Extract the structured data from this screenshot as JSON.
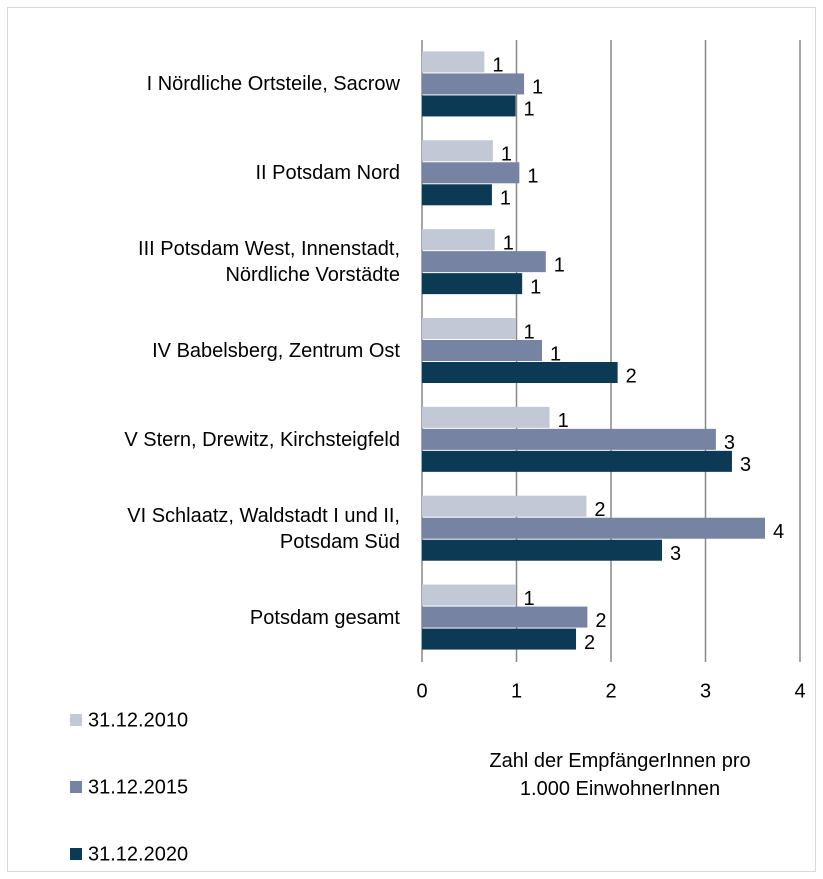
{
  "chart_data": {
    "type": "bar",
    "orientation": "horizontal",
    "categories": [
      "I Nördliche Ortsteile, Sacrow",
      "II Potsdam Nord",
      "III Potsdam West, Innenstadt,\nNördliche Vorstädte",
      "IV Babelsberg, Zentrum Ost",
      "V Stern, Drewitz, Kirchsteigfeld",
      "VI Schlaatz, Waldstadt I und II,\nPotsdam Süd",
      "Potsdam gesamt"
    ],
    "series": [
      {
        "name": "31.12.2010",
        "color": "#c3c8d6",
        "values": [
          0.66,
          0.75,
          0.77,
          0.99,
          1.35,
          1.74,
          0.99
        ],
        "value_labels": [
          "1",
          "1",
          "1",
          "1",
          "1",
          "2",
          "1"
        ]
      },
      {
        "name": "31.12.2015",
        "color": "#7683a3",
        "values": [
          1.08,
          1.03,
          1.31,
          1.27,
          3.11,
          3.63,
          1.75
        ],
        "value_labels": [
          "1",
          "1",
          "1",
          "1",
          "3",
          "4",
          "2"
        ]
      },
      {
        "name": "31.12.2020",
        "color": "#0c3a55",
        "values": [
          0.99,
          0.74,
          1.06,
          2.07,
          3.28,
          2.54,
          1.63
        ],
        "value_labels": [
          "1",
          "1",
          "1",
          "2",
          "3",
          "3",
          "2"
        ]
      }
    ],
    "x_label": "Zahl der EmpfängerInnen pro\n1.000 EinwohnerInnen",
    "xlim": [
      0,
      4
    ],
    "xticks": [
      0,
      1,
      2,
      3,
      4
    ],
    "grid": true,
    "legend": "bottom-left"
  }
}
